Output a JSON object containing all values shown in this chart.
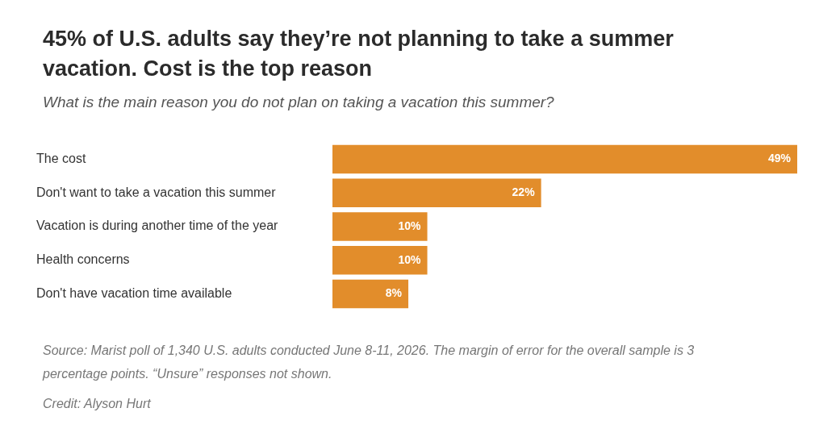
{
  "chart_data": {
    "type": "bar",
    "orientation": "horizontal",
    "title": "45% of U.S. adults say they’re not planning to take a summer vacation. Cost is the top reason",
    "subtitle": "What is the main reason you do not plan on taking a vacation this summer?",
    "categories": [
      "The cost",
      "Don't want to take a vacation this summer",
      "Vacation is during another time of the year",
      "Health concerns",
      "Don't have vacation time available"
    ],
    "values": [
      49,
      22,
      10,
      10,
      8
    ],
    "value_labels": [
      "49%",
      "22%",
      "10%",
      "10%",
      "8%"
    ],
    "color": "#e28d2b",
    "xlim": [
      0,
      49
    ],
    "tick_labels": "y",
    "legend": false,
    "annotations": [
      "Source: Marist poll of 1,340 U.S. adults conducted June 8-11, 2026. The margin of error for the overall sample is 3 percentage points. “Unsure” responses not shown.",
      "Credit: Alyson Hurt"
    ]
  }
}
